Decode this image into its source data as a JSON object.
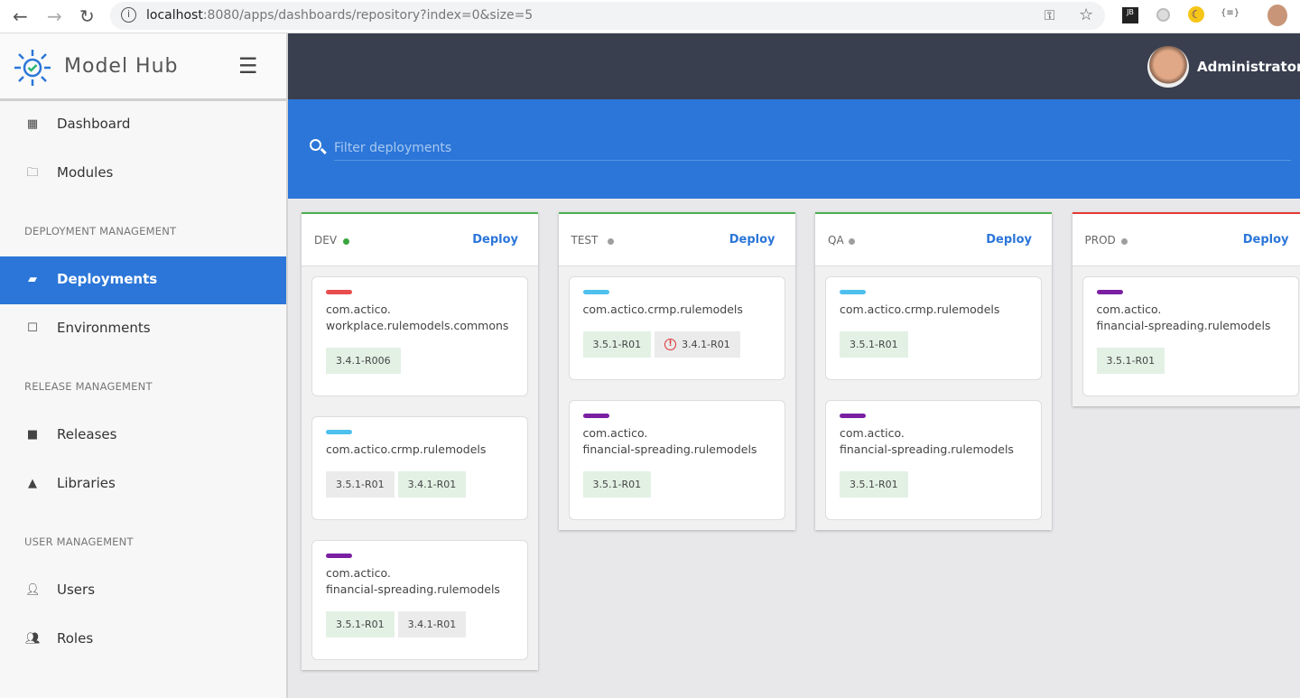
{
  "browser": {
    "url_host": "localhost",
    "url_rest": ":8080/apps/dashboards/repository?index=0&size=5"
  },
  "app": {
    "brand": "Model Hub",
    "user": "Administrator"
  },
  "sidebar": {
    "items": [
      {
        "label": "Dashboard",
        "icon": "dashboard-icon"
      },
      {
        "label": "Modules",
        "icon": "folder-outline-icon"
      },
      {
        "label": "Deployments",
        "icon": "label-icon"
      },
      {
        "label": "Environments",
        "icon": "square-outline-icon"
      },
      {
        "label": "Releases",
        "icon": "folder-icon"
      },
      {
        "label": "Libraries",
        "icon": "triangle-icon"
      },
      {
        "label": "Users",
        "icon": "user-icon"
      },
      {
        "label": "Roles",
        "icon": "users-icon"
      }
    ],
    "sections": [
      "DEPLOYMENT MANAGEMENT",
      "RELEASE MANAGEMENT",
      "USER MANAGEMENT"
    ]
  },
  "filter": {
    "placeholder": "Filter deployments"
  },
  "deploy_label": "Deploy",
  "colors": {
    "accent": "#2b76d8",
    "topbar": "#3a3f4f",
    "ok_tag": "#e3f1e4",
    "muted_tag": "#ebebeb"
  },
  "environments": [
    {
      "name": "DEV",
      "status_color": "#3aa53f",
      "border_color": "#4caf50",
      "modules": [
        {
          "stripe": "#e84c4c",
          "name": [
            "com.actico.",
            "workplace.rulemodels.commons"
          ],
          "tags": [
            {
              "v": "3.4.1-R006",
              "kind": "ok"
            }
          ]
        },
        {
          "stripe": "#4ec0ee",
          "name": [
            "com.actico.crmp.rulemodels"
          ],
          "tags": [
            {
              "v": "3.5.1-R01",
              "kind": "muted"
            },
            {
              "v": "3.4.1-R01",
              "kind": "ok"
            }
          ]
        },
        {
          "stripe": "#7a1fa2",
          "name": [
            "com.actico.",
            "financial-spreading.rulemodels"
          ],
          "tags": [
            {
              "v": "3.5.1-R01",
              "kind": "ok"
            },
            {
              "v": "3.4.1-R01",
              "kind": "muted"
            }
          ]
        }
      ]
    },
    {
      "name": "TEST",
      "status_color": "#9e9e9e",
      "border_color": "#4caf50",
      "modules": [
        {
          "stripe": "#4ec0ee",
          "name": [
            "com.actico.crmp.rulemodels"
          ],
          "tags": [
            {
              "v": "3.5.1-R01",
              "kind": "ok"
            },
            {
              "v": "3.4.1-R01",
              "kind": "muted",
              "error": true
            }
          ]
        },
        {
          "stripe": "#7a1fa2",
          "name": [
            "com.actico.",
            "financial-spreading.rulemodels"
          ],
          "tags": [
            {
              "v": "3.5.1-R01",
              "kind": "ok"
            }
          ]
        }
      ]
    },
    {
      "name": "QA",
      "status_color": "#9e9e9e",
      "border_color": "#4caf50",
      "modules": [
        {
          "stripe": "#4ec0ee",
          "name": [
            "com.actico.crmp.rulemodels"
          ],
          "tags": [
            {
              "v": "3.5.1-R01",
              "kind": "ok"
            }
          ]
        },
        {
          "stripe": "#7a1fa2",
          "name": [
            "com.actico.",
            "financial-spreading.rulemodels"
          ],
          "tags": [
            {
              "v": "3.5.1-R01",
              "kind": "ok"
            }
          ]
        }
      ]
    },
    {
      "name": "PROD",
      "status_color": "#9e9e9e",
      "border_color": "#e53935",
      "modules": [
        {
          "stripe": "#7a1fa2",
          "name": [
            "com.actico.",
            "financial-spreading.rulemodels"
          ],
          "tags": [
            {
              "v": "3.5.1-R01",
              "kind": "ok"
            }
          ]
        }
      ]
    }
  ]
}
